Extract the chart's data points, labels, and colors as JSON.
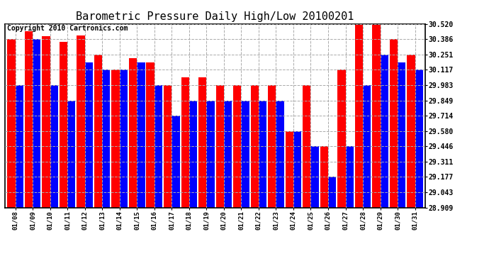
{
  "title": "Barometric Pressure Daily High/Low 20100201",
  "copyright": "Copyright 2010 Cartronics.com",
  "dates": [
    "01/08",
    "01/09",
    "01/10",
    "01/11",
    "01/12",
    "01/13",
    "01/14",
    "01/15",
    "01/16",
    "01/17",
    "01/18",
    "01/19",
    "01/20",
    "01/21",
    "01/22",
    "01/23",
    "01/24",
    "01/25",
    "01/26",
    "01/27",
    "01/28",
    "01/29",
    "01/30",
    "01/31"
  ],
  "highs": [
    30.386,
    30.454,
    30.41,
    30.361,
    30.42,
    30.251,
    30.117,
    30.22,
    30.184,
    29.983,
    30.05,
    30.05,
    29.983,
    29.983,
    29.983,
    29.983,
    29.58,
    29.983,
    29.446,
    30.117,
    30.52,
    30.52,
    30.386,
    30.251
  ],
  "lows": [
    29.983,
    30.386,
    29.983,
    29.849,
    30.184,
    30.117,
    30.117,
    30.184,
    29.983,
    29.714,
    29.849,
    29.849,
    29.849,
    29.849,
    29.849,
    29.849,
    29.58,
    29.446,
    29.177,
    29.446,
    29.983,
    30.251,
    30.184,
    30.117
  ],
  "high_color": "#ff0000",
  "low_color": "#0000ff",
  "bg_color": "#ffffff",
  "grid_color": "#aaaaaa",
  "yticks": [
    28.909,
    29.043,
    29.177,
    29.311,
    29.446,
    29.58,
    29.714,
    29.849,
    29.983,
    30.117,
    30.251,
    30.386,
    30.52
  ],
  "ymin": 28.909,
  "ymax": 30.52,
  "title_fontsize": 11,
  "copyright_fontsize": 7
}
